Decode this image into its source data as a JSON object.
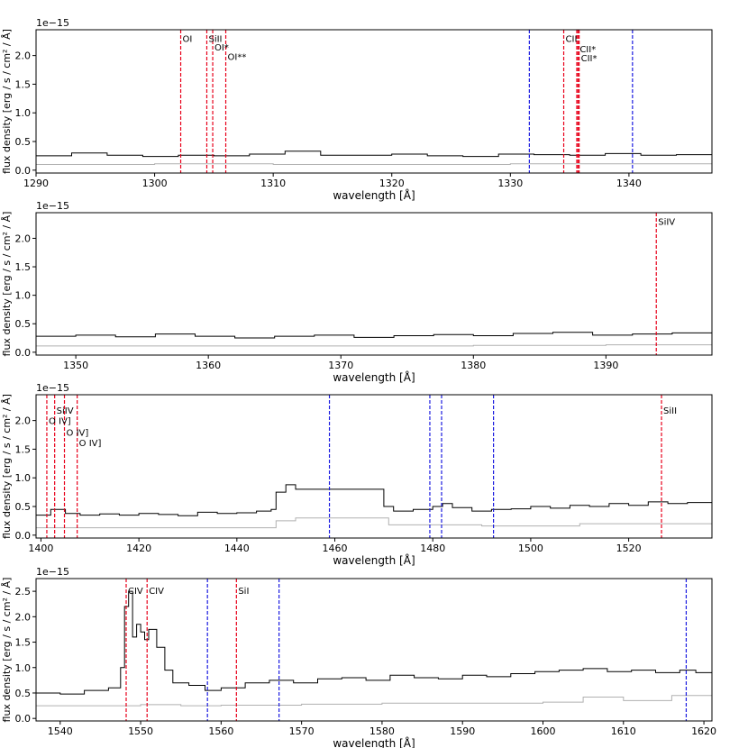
{
  "chart_data": [
    {
      "type": "line",
      "xlim": [
        1290,
        1347
      ],
      "ylim": [
        -0.05,
        2.45
      ],
      "xticks": [
        1290,
        1300,
        1310,
        1320,
        1330,
        1340
      ],
      "yticks": [
        0.0,
        0.5,
        1.0,
        1.5,
        2.0
      ],
      "ytick_labels": [
        "0.0",
        "0.5",
        "1.0",
        "1.5",
        "2.0"
      ],
      "offset_text": "1e−15",
      "xlabel": "wavelength [Å]",
      "ylabel": "flux density [erg / s / cm² / Å]",
      "series": [
        {
          "color": "#000000",
          "x": [
            1290,
            1293,
            1296,
            1299,
            1302,
            1305,
            1308,
            1311,
            1314,
            1317,
            1320,
            1323,
            1326,
            1329,
            1332,
            1335,
            1338,
            1341,
            1344,
            1347
          ],
          "y": [
            0.25,
            0.3,
            0.26,
            0.24,
            0.26,
            0.25,
            0.28,
            0.33,
            0.26,
            0.26,
            0.28,
            0.25,
            0.24,
            0.28,
            0.27,
            0.26,
            0.29,
            0.26,
            0.27,
            0.28
          ]
        },
        {
          "color": "#b0b0b0",
          "x": [
            1290,
            1300,
            1310,
            1320,
            1330,
            1340,
            1347
          ],
          "y": [
            0.1,
            0.11,
            0.1,
            0.1,
            0.11,
            0.11,
            0.12
          ]
        }
      ],
      "red_lines": [
        {
          "x": 1302.2,
          "label": "OI",
          "label_y": 2.3
        },
        {
          "x": 1304.4,
          "label": "SiII",
          "label_y": 2.3
        },
        {
          "x": 1304.9,
          "label": "OI*",
          "label_y": 2.15
        },
        {
          "x": 1306.0,
          "label": "OI**",
          "label_y": 1.99
        },
        {
          "x": 1334.5,
          "label": "CII",
          "label_y": 2.3
        },
        {
          "x": 1335.6,
          "label": "",
          "label_y": 0
        },
        {
          "x": 1335.7,
          "label": "CII*",
          "label_y": 2.12
        },
        {
          "x": 1335.8,
          "label": "CII*",
          "label_y": 1.96
        }
      ],
      "blue_lines": [
        1331.6,
        1340.3
      ]
    },
    {
      "type": "line",
      "xlim": [
        1347,
        1398
      ],
      "ylim": [
        -0.05,
        2.45
      ],
      "xticks": [
        1350,
        1360,
        1370,
        1380,
        1390
      ],
      "yticks": [
        0.0,
        0.5,
        1.0,
        1.5,
        2.0
      ],
      "ytick_labels": [
        "0.0",
        "0.5",
        "1.0",
        "1.5",
        "2.0"
      ],
      "offset_text": "1e−15",
      "xlabel": "wavelength [Å]",
      "ylabel": "flux density [erg / s / cm² / Å]",
      "series": [
        {
          "color": "#000000",
          "x": [
            1347,
            1350,
            1353,
            1356,
            1359,
            1362,
            1365,
            1368,
            1371,
            1374,
            1377,
            1380,
            1383,
            1386,
            1389,
            1392,
            1395,
            1398
          ],
          "y": [
            0.28,
            0.3,
            0.27,
            0.32,
            0.28,
            0.25,
            0.28,
            0.3,
            0.26,
            0.29,
            0.31,
            0.29,
            0.33,
            0.35,
            0.3,
            0.32,
            0.34,
            0.36
          ]
        },
        {
          "color": "#b0b0b0",
          "x": [
            1347,
            1360,
            1370,
            1380,
            1390,
            1398
          ],
          "y": [
            0.11,
            0.11,
            0.11,
            0.12,
            0.13,
            0.13
          ]
        }
      ],
      "red_lines": [
        {
          "x": 1393.8,
          "label": "SiIV",
          "label_y": 2.3
        }
      ],
      "blue_lines": []
    },
    {
      "type": "line",
      "xlim": [
        1399,
        1537
      ],
      "ylim": [
        -0.05,
        2.45
      ],
      "xticks": [
        1400,
        1420,
        1440,
        1460,
        1480,
        1500,
        1520
      ],
      "yticks": [
        0.0,
        0.5,
        1.0,
        1.5,
        2.0
      ],
      "ytick_labels": [
        "0.0",
        "0.5",
        "1.0",
        "1.5",
        "2.0"
      ],
      "offset_text": "1e−15",
      "xlabel": "wavelength [Å]",
      "ylabel": "flux density [erg / s / cm² / Å]",
      "series": [
        {
          "color": "#000000",
          "x": [
            1399,
            1402,
            1405,
            1408,
            1412,
            1416,
            1420,
            1424,
            1428,
            1432,
            1436,
            1440,
            1444,
            1447,
            1448,
            1450,
            1452,
            1458,
            1464,
            1469,
            1470,
            1472,
            1476,
            1480,
            1482,
            1484,
            1488,
            1492,
            1496,
            1500,
            1504,
            1508,
            1512,
            1516,
            1520,
            1524,
            1528,
            1532,
            1537
          ],
          "y": [
            0.35,
            0.45,
            0.38,
            0.35,
            0.37,
            0.35,
            0.38,
            0.36,
            0.34,
            0.4,
            0.38,
            0.39,
            0.42,
            0.45,
            0.75,
            0.88,
            0.8,
            0.8,
            0.8,
            0.8,
            0.5,
            0.42,
            0.45,
            0.5,
            0.55,
            0.48,
            0.42,
            0.45,
            0.46,
            0.5,
            0.47,
            0.52,
            0.5,
            0.55,
            0.52,
            0.58,
            0.55,
            0.57,
            0.6
          ]
        },
        {
          "color": "#b0b0b0",
          "x": [
            1399,
            1420,
            1446,
            1448,
            1452,
            1469,
            1471,
            1490,
            1510,
            1537
          ],
          "y": [
            0.13,
            0.13,
            0.13,
            0.25,
            0.3,
            0.3,
            0.18,
            0.16,
            0.2,
            0.25
          ]
        }
      ],
      "red_lines": [
        {
          "x": 1401.2,
          "label": "O IV]",
          "label_y": 2.0
        },
        {
          "x": 1402.8,
          "label": "SiIV",
          "label_y": 2.18
        },
        {
          "x": 1404.8,
          "label": "O IV]",
          "label_y": 1.8
        },
        {
          "x": 1407.4,
          "label": "O IV]",
          "label_y": 1.62
        },
        {
          "x": 1526.7,
          "label": "SiII",
          "label_y": 2.18
        }
      ],
      "blue_lines": [
        1458.9,
        1479.4,
        1481.8,
        1492.4
      ]
    },
    {
      "type": "line",
      "xlim": [
        1537,
        1621
      ],
      "ylim": [
        -0.05,
        2.75
      ],
      "xticks": [
        1540,
        1550,
        1560,
        1570,
        1580,
        1590,
        1600,
        1610,
        1620
      ],
      "yticks": [
        0.0,
        0.5,
        1.0,
        1.5,
        2.0,
        2.5
      ],
      "ytick_labels": [
        "0.0",
        "0.5",
        "1.0",
        "1.5",
        "2.0",
        "2.5"
      ],
      "offset_text": "1e−15",
      "xlabel": "wavelength [Å]",
      "ylabel": "flux density [erg / s / cm² / Å]",
      "series": [
        {
          "color": "#000000",
          "x": [
            1537,
            1540,
            1543,
            1546,
            1547.5,
            1548,
            1548.5,
            1549,
            1549.5,
            1550,
            1550.5,
            1551,
            1552,
            1553,
            1554,
            1556,
            1558,
            1560,
            1563,
            1566,
            1569,
            1572,
            1575,
            1578,
            1581,
            1584,
            1587,
            1590,
            1593,
            1596,
            1599,
            1602,
            1605,
            1608,
            1611,
            1614,
            1617,
            1619,
            1621
          ],
          "y": [
            0.5,
            0.48,
            0.55,
            0.6,
            1.0,
            2.2,
            2.5,
            1.6,
            1.85,
            1.7,
            1.55,
            1.75,
            1.4,
            0.95,
            0.7,
            0.65,
            0.55,
            0.6,
            0.7,
            0.75,
            0.7,
            0.78,
            0.8,
            0.75,
            0.85,
            0.8,
            0.78,
            0.85,
            0.82,
            0.88,
            0.92,
            0.95,
            0.98,
            0.92,
            0.95,
            0.9,
            0.95,
            0.9,
            0.88
          ]
        },
        {
          "color": "#b0b0b0",
          "x": [
            1537,
            1550,
            1555,
            1560,
            1570,
            1580,
            1590,
            1600,
            1605,
            1610,
            1616,
            1621
          ],
          "y": [
            0.25,
            0.27,
            0.25,
            0.26,
            0.28,
            0.3,
            0.3,
            0.32,
            0.42,
            0.35,
            0.45,
            0.35
          ]
        }
      ],
      "red_lines": [
        {
          "x": 1548.2,
          "label": "CIV",
          "label_y": 2.52
        },
        {
          "x": 1550.8,
          "label": "CIV",
          "label_y": 2.52
        },
        {
          "x": 1561.9,
          "label": "SiI",
          "label_y": 2.52
        }
      ],
      "blue_lines": [
        1558.3,
        1567.2,
        1617.8
      ]
    }
  ],
  "colors": {
    "flux": "#000000",
    "error": "#b0b0b0",
    "red_marker": "#e8001a",
    "blue_marker": "#1a1ae0"
  }
}
